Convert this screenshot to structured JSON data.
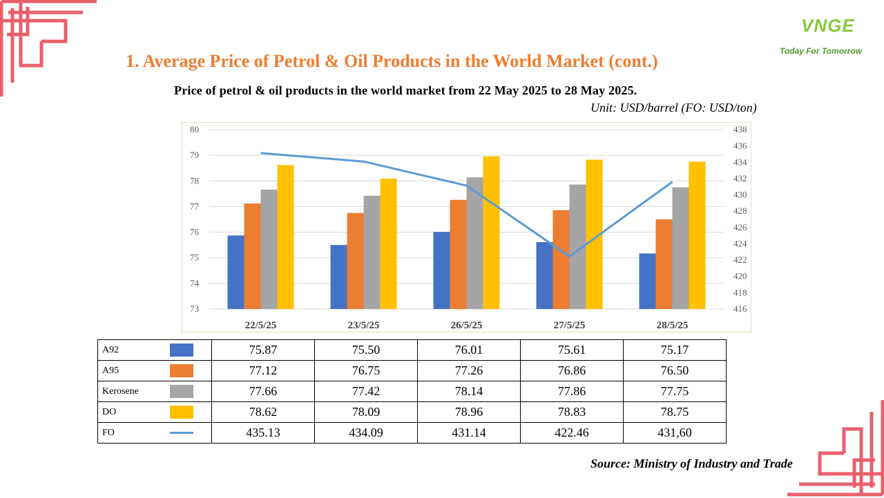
{
  "header": {
    "title": "1. Average Price of Petrol & Oil Products in the World Market (cont.)",
    "subtitle": "Price of petrol & oil products in the world market from 22 May 2025 to 28 May 2025.",
    "unit": "Unit:  USD/barrel (FO: USD/ton)"
  },
  "logo": {
    "text": "VNGE",
    "slogan": "Today For Tomorrow"
  },
  "source": "Source: Ministry of Industry and Trade",
  "colors": {
    "A92": "#4472c4",
    "A95": "#ed7d31",
    "Kerosene": "#a5a5a5",
    "DO": "#ffc000",
    "FO": "#5b9bd5",
    "title": "#ed7d31",
    "decor": "#e8606c"
  },
  "chart_data": {
    "type": "bar",
    "categories": [
      "22/5/25",
      "23/5/25",
      "26/5/25",
      "27/5/25",
      "28/5/25"
    ],
    "series": [
      {
        "name": "A92",
        "type": "bar",
        "axis": "left",
        "values": [
          75.87,
          75.5,
          76.01,
          75.61,
          75.17
        ]
      },
      {
        "name": "A95",
        "type": "bar",
        "axis": "left",
        "values": [
          77.12,
          76.75,
          77.26,
          76.86,
          76.5
        ]
      },
      {
        "name": "Kerosene",
        "type": "bar",
        "axis": "left",
        "values": [
          77.66,
          77.42,
          78.14,
          77.86,
          77.75
        ]
      },
      {
        "name": "DO",
        "type": "bar",
        "axis": "left",
        "values": [
          78.62,
          78.09,
          78.96,
          78.83,
          78.75
        ]
      },
      {
        "name": "FO",
        "type": "line",
        "axis": "right",
        "values": [
          435.13,
          434.09,
          431.14,
          422.46,
          431.6
        ]
      }
    ],
    "ylim": [
      73,
      80
    ],
    "yticks": [
      "73",
      "74",
      "75",
      "76",
      "77",
      "78",
      "79",
      "80"
    ],
    "y2lim": [
      416,
      438
    ],
    "y2ticks": [
      "416",
      "418",
      "420",
      "422",
      "424",
      "426",
      "428",
      "430",
      "432",
      "434",
      "436",
      "438"
    ],
    "grid": true,
    "legend": "data table below chart"
  },
  "table": {
    "rows": [
      {
        "name": "A92",
        "values": [
          "75.87",
          "75.50",
          "76.01",
          "75.61",
          "75.17"
        ]
      },
      {
        "name": "A95",
        "values": [
          "77.12",
          "76.75",
          "77.26",
          "76.86",
          "76.50"
        ]
      },
      {
        "name": "Kerosene",
        "values": [
          "77.66",
          "77.42",
          "78.14",
          "77.86",
          "77.75"
        ]
      },
      {
        "name": "DO",
        "values": [
          "78.62",
          "78.09",
          "78.96",
          "78.83",
          "78.75"
        ]
      },
      {
        "name": "FO",
        "values": [
          "435.13",
          "434.09",
          "431.14",
          "422.46",
          "431,60"
        ]
      }
    ]
  }
}
